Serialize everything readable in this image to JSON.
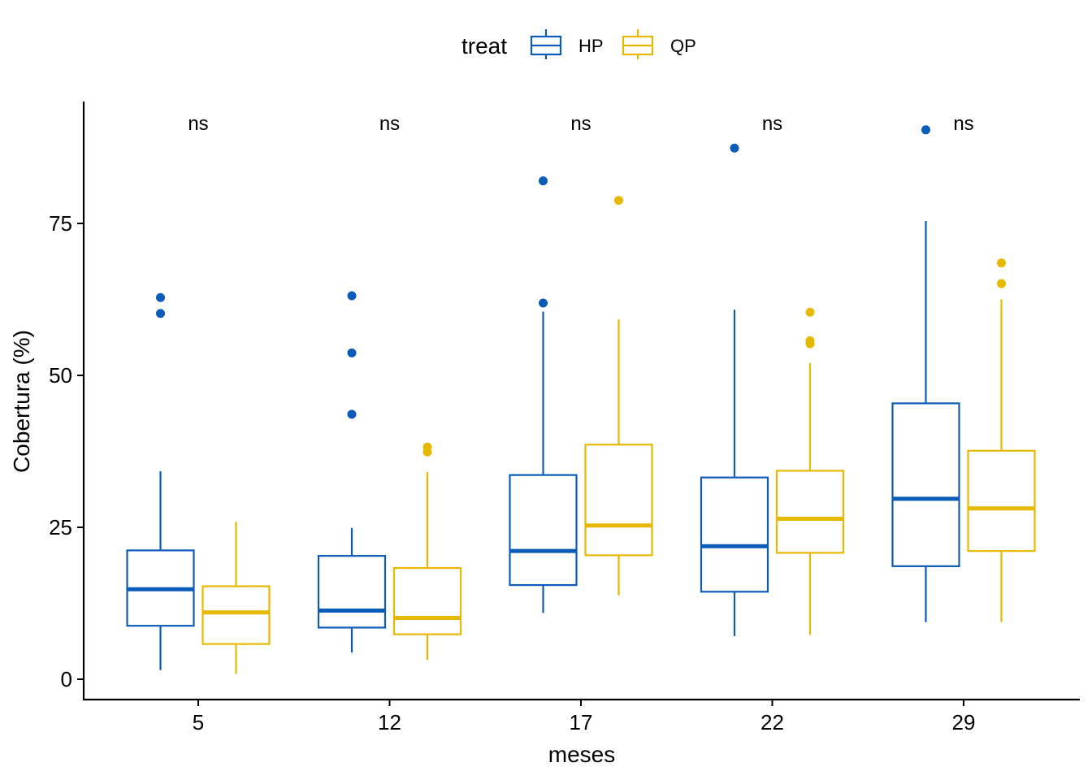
{
  "chart_data": {
    "type": "boxplot",
    "xlabel": "meses",
    "ylabel": "Cobertura (%)",
    "categories": [
      "5",
      "12",
      "17",
      "22",
      "29"
    ],
    "ylim": [
      -3.5,
      94.5
    ],
    "yticks": [
      0,
      25,
      50,
      75
    ],
    "grid": false,
    "legend": {
      "title": "treat",
      "position": "top"
    },
    "significance": [
      "ns",
      "ns",
      "ns",
      "ns",
      "ns"
    ],
    "series": [
      {
        "name": "HP",
        "color": "#0A5CB8",
        "boxes": [
          {
            "min": 1.5,
            "q1": 8.8,
            "median": 14.8,
            "q3": 21.2,
            "max": 34.2,
            "outliers": [
              62.8,
              60.2
            ]
          },
          {
            "min": 4.4,
            "q1": 8.5,
            "median": 11.3,
            "q3": 20.3,
            "max": 24.9,
            "outliers": [
              63.1,
              53.7,
              43.6
            ]
          },
          {
            "min": 10.9,
            "q1": 15.5,
            "median": 21.1,
            "q3": 33.6,
            "max": 60.5,
            "outliers": [
              82.0,
              61.9
            ]
          },
          {
            "min": 7.1,
            "q1": 14.4,
            "median": 21.9,
            "q3": 33.2,
            "max": 60.8,
            "outliers": [
              87.4
            ]
          },
          {
            "min": 9.4,
            "q1": 18.6,
            "median": 29.7,
            "q3": 45.4,
            "max": 75.4,
            "outliers": [
              90.4
            ]
          }
        ]
      },
      {
        "name": "QP",
        "color": "#E7B800",
        "boxes": [
          {
            "min": 0.9,
            "q1": 5.8,
            "median": 11.0,
            "q3": 15.3,
            "max": 25.9,
            "outliers": []
          },
          {
            "min": 3.2,
            "q1": 7.4,
            "median": 10.1,
            "q3": 18.3,
            "max": 34.1,
            "outliers": [
              38.2,
              37.4
            ]
          },
          {
            "min": 13.8,
            "q1": 20.4,
            "median": 25.3,
            "q3": 38.6,
            "max": 59.2,
            "outliers": [
              78.8
            ]
          },
          {
            "min": 7.3,
            "q1": 20.8,
            "median": 26.4,
            "q3": 34.3,
            "max": 52.0,
            "outliers": [
              60.4,
              55.7,
              55.2
            ]
          },
          {
            "min": 9.4,
            "q1": 21.1,
            "median": 28.1,
            "q3": 37.6,
            "max": 62.5,
            "outliers": [
              68.5,
              65.1
            ]
          }
        ]
      }
    ]
  }
}
